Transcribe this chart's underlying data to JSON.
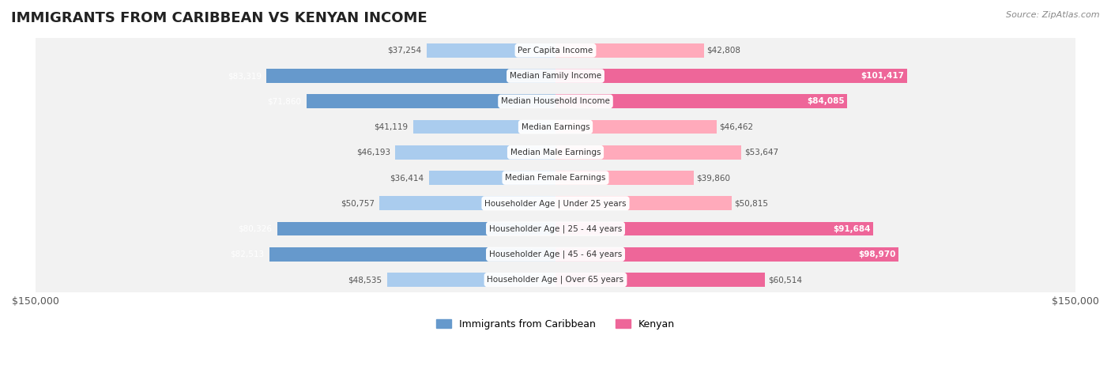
{
  "title": "IMMIGRANTS FROM CARIBBEAN VS KENYAN INCOME",
  "source": "Source: ZipAtlas.com",
  "categories": [
    "Per Capita Income",
    "Median Family Income",
    "Median Household Income",
    "Median Earnings",
    "Median Male Earnings",
    "Median Female Earnings",
    "Householder Age | Under 25 years",
    "Householder Age | 25 - 44 years",
    "Householder Age | 45 - 64 years",
    "Householder Age | Over 65 years"
  ],
  "caribbean_values": [
    37254,
    83319,
    71860,
    41119,
    46193,
    36414,
    50757,
    80326,
    82513,
    48535
  ],
  "kenyan_values": [
    42808,
    101417,
    84085,
    46462,
    53647,
    39860,
    50815,
    91684,
    98970,
    60514
  ],
  "caribbean_labels": [
    "$37,254",
    "$83,319",
    "$71,860",
    "$41,119",
    "$46,193",
    "$36,414",
    "$50,757",
    "$80,326",
    "$82,513",
    "$48,535"
  ],
  "kenyan_labels": [
    "$42,808",
    "$101,417",
    "$84,085",
    "$46,462",
    "$53,647",
    "$39,860",
    "$50,815",
    "$91,684",
    "$98,970",
    "$60,514"
  ],
  "caribbean_color_dark": "#6699CC",
  "caribbean_color_light": "#AACCEE",
  "kenyan_color_dark": "#EE6699",
  "kenyan_color_light": "#FFAABB",
  "max_value": 150000,
  "legend_caribbean": "Immigrants from Caribbean",
  "legend_kenyan": "Kenyan",
  "bg_color": "#f5f5f5",
  "row_bg": "#f0f0f0",
  "label_color_dark_caribbean": "#5577AA",
  "label_color_dark_kenyan": "#CC4477"
}
